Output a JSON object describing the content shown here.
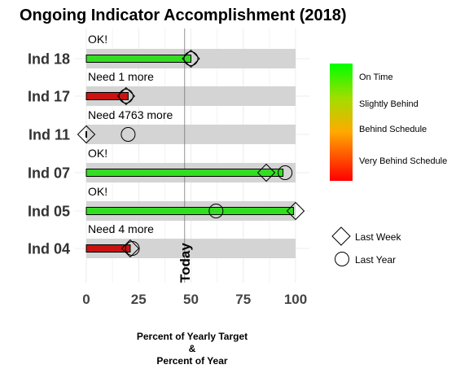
{
  "chart_data": {
    "type": "bar",
    "title": "Ongoing Indicator Accomplishment (2018)",
    "xlabel_lines": [
      "Percent of Yearly Target",
      "&",
      "Percent of Year"
    ],
    "xlim": [
      0,
      100
    ],
    "x_ticks": [
      0,
      25,
      50,
      75,
      100
    ],
    "today": 47,
    "today_label": "Today",
    "categories": [
      "Ind 18",
      "Ind 17",
      "Ind 11",
      "Ind 07",
      "Ind 05",
      "Ind 04"
    ],
    "progress": [
      50,
      20,
      0,
      94,
      99,
      21
    ],
    "last_week": [
      50,
      19,
      0,
      86,
      100,
      21
    ],
    "last_year": [
      50,
      19,
      20,
      95,
      62,
      22
    ],
    "status_labels": [
      "OK!",
      "Need 1 more",
      "Need 4763 more",
      "OK!",
      "OK!",
      "Need 4 more"
    ],
    "bar_colors": [
      "#33dd22",
      "#cc1111",
      "#cc1111",
      "#33dd22",
      "#33dd22",
      "#cc1111"
    ],
    "background_range": [
      0,
      100
    ],
    "color_legend": {
      "labels": [
        "On Time",
        "Slightly Behind",
        "Behind Schedule",
        "Very Behind Schedule"
      ],
      "colors": [
        "#00ff00",
        "#a4cc00",
        "#ff9900",
        "#ff0000"
      ]
    },
    "shape_legend": {
      "last_week": "Last Week",
      "last_year": "Last Year"
    },
    "grid": true
  }
}
